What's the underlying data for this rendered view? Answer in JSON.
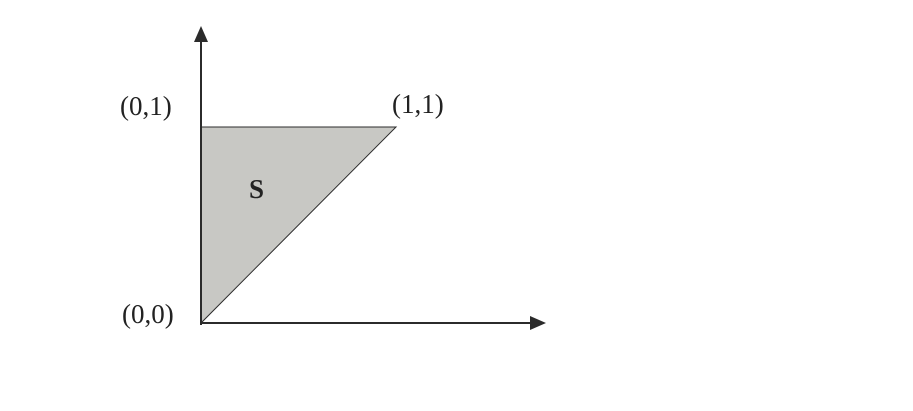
{
  "diagram": {
    "region_label": "S",
    "vertex_labels": {
      "origin": "(0,0)",
      "top_left": "(0,1)",
      "top_right": "(1,1)"
    },
    "colors": {
      "region_fill": "#c8c8c4",
      "stroke": "#2b2b2b"
    }
  }
}
